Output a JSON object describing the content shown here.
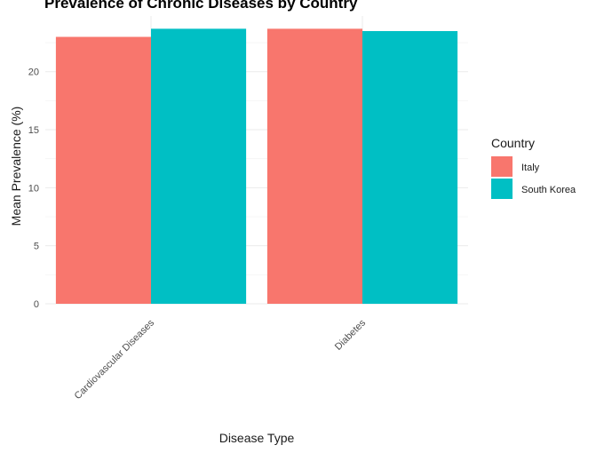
{
  "chart_data": {
    "type": "bar",
    "title": "Prevalence of Chronic Diseases by Country",
    "xlabel": "Disease Type",
    "ylabel": "Mean Prevalence (%)",
    "categories": [
      "Cardiovascular Diseases",
      "Diabetes"
    ],
    "series": [
      {
        "name": "Italy",
        "color": "#F8766D",
        "values": [
          23.0,
          23.7
        ]
      },
      {
        "name": "South Korea",
        "color": "#00BFC4",
        "values": [
          23.7,
          23.5
        ]
      }
    ],
    "ylim": [
      0,
      24.8
    ],
    "yticks": [
      0,
      5,
      10,
      15,
      20
    ],
    "grid": true,
    "legend": {
      "title": "Country",
      "position": "right"
    }
  }
}
